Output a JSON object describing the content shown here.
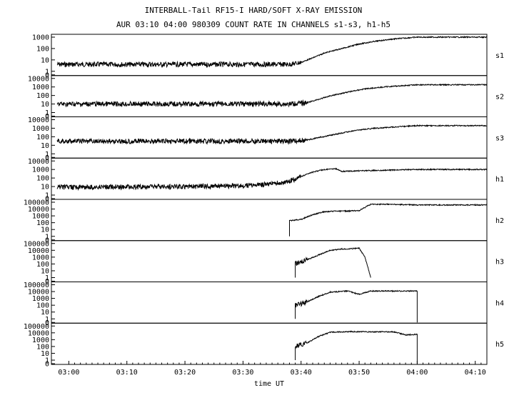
{
  "chart_data": {
    "type": "line",
    "title": "INTERBALL-Tail RF15-I HARD/SOFT X-RAY EMISSION",
    "subtitle": "AUR 03:10 04:00 980309  COUNT RATE IN CHANNELS s1-s3, h1-h5",
    "xlabel": "time UT",
    "x_ticks": [
      "03:00",
      "03:10",
      "03:20",
      "03:30",
      "03:40",
      "03:50",
      "04:00",
      "04:10"
    ],
    "y_scale": "log",
    "grid": false,
    "panels": [
      {
        "name": "s1",
        "yticks": [
          "1000",
          "100",
          "10",
          "1",
          "0"
        ],
        "points": [
          [
            "02:58",
            4
          ],
          [
            "03:20",
            4
          ],
          [
            "03:35",
            4
          ],
          [
            "03:38",
            4
          ],
          [
            "03:40",
            6
          ],
          [
            "03:42",
            15
          ],
          [
            "03:44",
            40
          ],
          [
            "03:47",
            100
          ],
          [
            "03:50",
            250
          ],
          [
            "03:53",
            450
          ],
          [
            "03:56",
            700
          ],
          [
            "04:00",
            1000
          ],
          [
            "04:12",
            1000
          ]
        ]
      },
      {
        "name": "s2",
        "yticks": [
          "10000",
          "1000",
          "100",
          "10",
          "1",
          "0"
        ],
        "points": [
          [
            "02:58",
            10
          ],
          [
            "03:20",
            10
          ],
          [
            "03:38",
            10
          ],
          [
            "03:41",
            14
          ],
          [
            "03:43",
            35
          ],
          [
            "03:45",
            90
          ],
          [
            "03:48",
            250
          ],
          [
            "03:51",
            600
          ],
          [
            "03:55",
            1100
          ],
          [
            "04:00",
            1800
          ],
          [
            "04:12",
            1800
          ]
        ]
      },
      {
        "name": "s3",
        "yticks": [
          "10000",
          "1000",
          "100",
          "10",
          "1",
          "0"
        ],
        "points": [
          [
            "02:58",
            30
          ],
          [
            "03:20",
            30
          ],
          [
            "03:38",
            30
          ],
          [
            "03:41",
            40
          ],
          [
            "03:43",
            80
          ],
          [
            "03:46",
            200
          ],
          [
            "03:49",
            500
          ],
          [
            "03:52",
            900
          ],
          [
            "03:56",
            1400
          ],
          [
            "04:00",
            2000
          ],
          [
            "04:12",
            2000
          ]
        ]
      },
      {
        "name": "h1",
        "yticks": [
          "10000",
          "1000",
          "100",
          "10",
          "1",
          "0"
        ],
        "points": [
          [
            "02:58",
            8
          ],
          [
            "03:20",
            10
          ],
          [
            "03:30",
            12
          ],
          [
            "03:35",
            20
          ],
          [
            "03:38",
            40
          ],
          [
            "03:40",
            150
          ],
          [
            "03:42",
            500
          ],
          [
            "03:44",
            1000
          ],
          [
            "03:46",
            1200
          ],
          [
            "03:47",
            600
          ],
          [
            "03:50",
            700
          ],
          [
            "04:00",
            1000
          ],
          [
            "04:12",
            1000
          ]
        ]
      },
      {
        "name": "h2",
        "yticks": [
          "100000",
          "10000",
          "1000",
          "100",
          "10",
          "1",
          "0"
        ],
        "points": [
          [
            "03:38",
            1
          ],
          [
            "03:38",
            200
          ],
          [
            "03:40",
            300
          ],
          [
            "03:42",
            1500
          ],
          [
            "03:44",
            4000
          ],
          [
            "03:46",
            5000
          ],
          [
            "03:48",
            5000
          ],
          [
            "03:50",
            6000
          ],
          [
            "03:52",
            50000
          ],
          [
            "03:55",
            50000
          ],
          [
            "04:00",
            40000
          ],
          [
            "04:12",
            40000
          ]
        ]
      },
      {
        "name": "h3",
        "yticks": [
          "100000",
          "10000",
          "1000",
          "100",
          "10",
          "1",
          "0"
        ],
        "points": [
          [
            "03:39",
            1
          ],
          [
            "03:39",
            100
          ],
          [
            "03:41",
            400
          ],
          [
            "03:43",
            2000
          ],
          [
            "03:45",
            10000
          ],
          [
            "03:47",
            15000
          ],
          [
            "03:49",
            18000
          ],
          [
            "03:50",
            20000
          ],
          [
            "03:51",
            1000
          ],
          [
            "03:52",
            1
          ]
        ]
      },
      {
        "name": "h4",
        "yticks": [
          "100000",
          "10000",
          "1000",
          "100",
          "10",
          "1",
          "0"
        ],
        "points": [
          [
            "03:39",
            1
          ],
          [
            "03:39",
            100
          ],
          [
            "03:41",
            300
          ],
          [
            "03:43",
            2000
          ],
          [
            "03:45",
            8000
          ],
          [
            "03:48",
            12000
          ],
          [
            "03:50",
            4000
          ],
          [
            "03:52",
            12000
          ],
          [
            "03:56",
            12000
          ],
          [
            "04:00",
            12000
          ],
          [
            "04:00",
            0
          ]
        ]
      },
      {
        "name": "h5",
        "yticks": [
          "100000",
          "10000",
          "1000",
          "100",
          "10",
          "1",
          "0"
        ],
        "points": [
          [
            "03:39",
            1
          ],
          [
            "03:39",
            100
          ],
          [
            "03:41",
            300
          ],
          [
            "03:43",
            3000
          ],
          [
            "03:45",
            12000
          ],
          [
            "03:48",
            15000
          ],
          [
            "03:52",
            14000
          ],
          [
            "03:56",
            14000
          ],
          [
            "03:58",
            5000
          ],
          [
            "04:00",
            6000
          ],
          [
            "04:00",
            0
          ]
        ]
      }
    ]
  }
}
